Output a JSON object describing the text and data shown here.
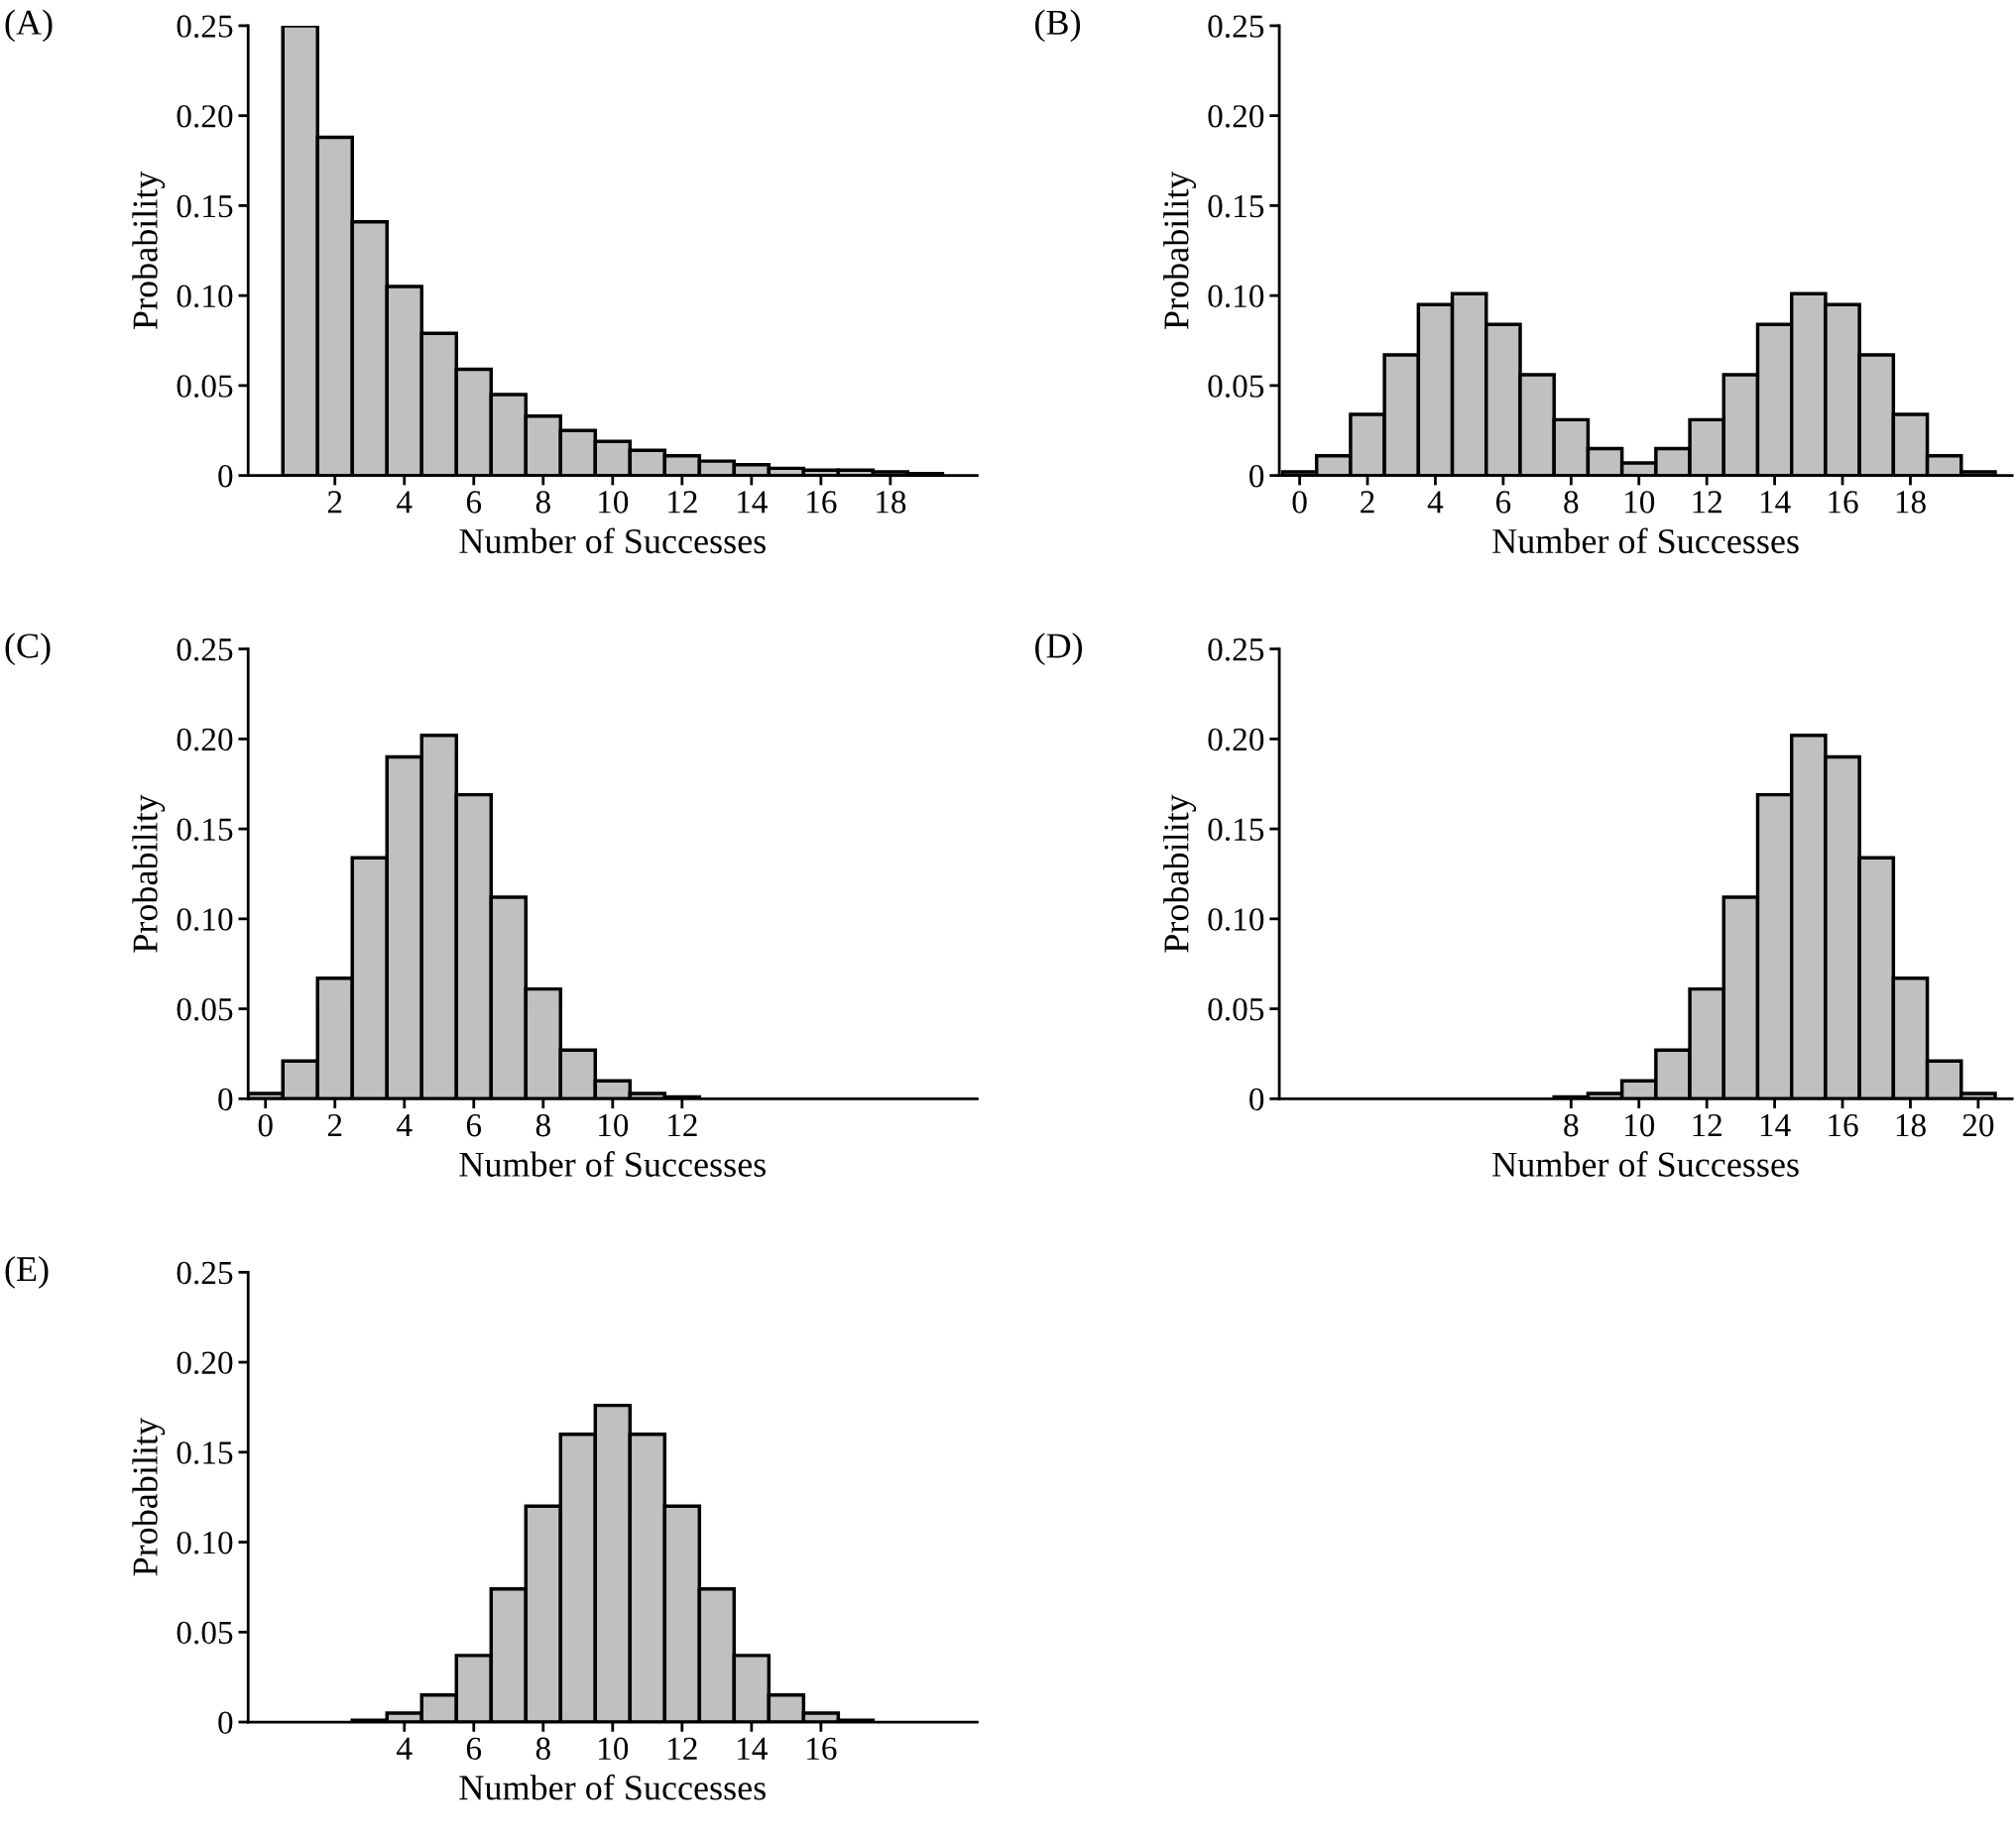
{
  "chart_data": [
    {
      "type": "bar",
      "title": "(A)",
      "xlabel": "Number of Successes",
      "ylabel": "Probability",
      "color": "#c0c0c0",
      "x": [
        1,
        2,
        3,
        4,
        5,
        6,
        7,
        8,
        9,
        10,
        11,
        12,
        13,
        14,
        15,
        16,
        17,
        18,
        19
      ],
      "values": [
        0.25,
        0.188,
        0.141,
        0.105,
        0.079,
        0.059,
        0.045,
        0.033,
        0.025,
        0.019,
        0.014,
        0.011,
        0.008,
        0.006,
        0.004,
        0.003,
        0.003,
        0.002,
        0.001
      ],
      "xlim": [
        -0.5,
        20.5
      ],
      "xticks": [
        2,
        4,
        6,
        8,
        10,
        12,
        14,
        16,
        18
      ],
      "ylim": [
        0,
        0.25
      ],
      "yticks": [
        0,
        {
          "value": 0.05,
          "label": "0.05"
        },
        {
          "value": 0.1,
          "label": "0.10"
        },
        {
          "value": 0.15,
          "label": "0.15"
        },
        {
          "value": 0.2,
          "label": "0.20"
        },
        {
          "value": 0.25,
          "label": "0.25"
        }
      ],
      "grid": false
    },
    {
      "type": "bar",
      "title": "(B)",
      "xlabel": "Number of Successes",
      "ylabel": "Probability",
      "color": "#c0c0c0",
      "x": [
        0,
        1,
        2,
        3,
        4,
        5,
        6,
        7,
        8,
        9,
        10,
        11,
        12,
        13,
        14,
        15,
        16,
        17,
        18,
        19,
        20
      ],
      "values": [
        0.002,
        0.011,
        0.034,
        0.067,
        0.095,
        0.101,
        0.084,
        0.056,
        0.031,
        0.015,
        0.007,
        0.015,
        0.031,
        0.056,
        0.084,
        0.101,
        0.095,
        0.067,
        0.034,
        0.011,
        0.002
      ],
      "xlim": [
        -0.6,
        21
      ],
      "xticks": [
        0,
        2,
        4,
        6,
        8,
        10,
        12,
        14,
        16,
        18
      ],
      "ylim": [
        0,
        0.25
      ],
      "yticks": [
        0,
        {
          "value": 0.05,
          "label": "0.05"
        },
        {
          "value": 0.1,
          "label": "0.10"
        },
        {
          "value": 0.15,
          "label": "0.15"
        },
        {
          "value": 0.2,
          "label": "0.20"
        },
        {
          "value": 0.25,
          "label": "0.25"
        }
      ],
      "grid": false
    },
    {
      "type": "bar",
      "title": "(C)",
      "xlabel": "Number of Successes",
      "ylabel": "Probability",
      "color": "#c0c0c0",
      "x": [
        0,
        1,
        2,
        3,
        4,
        5,
        6,
        7,
        8,
        9,
        10,
        11,
        12
      ],
      "values": [
        0.003,
        0.021,
        0.067,
        0.134,
        0.19,
        0.202,
        0.169,
        0.112,
        0.061,
        0.027,
        0.01,
        0.003,
        0.001
      ],
      "xlim": [
        -0.5,
        20.5
      ],
      "xticks": [
        0,
        2,
        4,
        6,
        8,
        10,
        12
      ],
      "ylim": [
        0,
        0.25
      ],
      "yticks": [
        0,
        {
          "value": 0.05,
          "label": "0.05"
        },
        {
          "value": 0.1,
          "label": "0.10"
        },
        {
          "value": 0.15,
          "label": "0.15"
        },
        {
          "value": 0.2,
          "label": "0.20"
        },
        {
          "value": 0.25,
          "label": "0.25"
        }
      ],
      "grid": false
    },
    {
      "type": "bar",
      "title": "(D)",
      "xlabel": "Number of Successes",
      "ylabel": "Probability",
      "color": "#c0c0c0",
      "x": [
        8,
        9,
        10,
        11,
        12,
        13,
        14,
        15,
        16,
        17,
        18,
        19,
        20
      ],
      "values": [
        0.001,
        0.003,
        0.01,
        0.027,
        0.061,
        0.112,
        0.169,
        0.202,
        0.19,
        0.134,
        0.067,
        0.021,
        0.003
      ],
      "xlim": [
        -0.6,
        21
      ],
      "xticks": [
        8,
        10,
        12,
        14,
        16,
        18,
        20
      ],
      "ylim": [
        0,
        0.25
      ],
      "yticks": [
        0,
        {
          "value": 0.05,
          "label": "0.05"
        },
        {
          "value": 0.1,
          "label": "0.10"
        },
        {
          "value": 0.15,
          "label": "0.15"
        },
        {
          "value": 0.2,
          "label": "0.20"
        },
        {
          "value": 0.25,
          "label": "0.25"
        }
      ],
      "grid": false
    },
    {
      "type": "bar",
      "title": "(E)",
      "xlabel": "Number of Successes",
      "ylabel": "Probability",
      "color": "#c0c0c0",
      "x": [
        3,
        4,
        5,
        6,
        7,
        8,
        9,
        10,
        11,
        12,
        13,
        14,
        15,
        16,
        17
      ],
      "values": [
        0.001,
        0.005,
        0.015,
        0.037,
        0.074,
        0.12,
        0.16,
        0.176,
        0.16,
        0.12,
        0.074,
        0.037,
        0.015,
        0.005,
        0.001
      ],
      "xlim": [
        -0.5,
        20.5
      ],
      "xticks": [
        4,
        6,
        8,
        10,
        12,
        14,
        16
      ],
      "ylim": [
        0,
        0.25
      ],
      "yticks": [
        0,
        {
          "value": 0.05,
          "label": "0.05"
        },
        {
          "value": 0.1,
          "label": "0.10"
        },
        {
          "value": 0.15,
          "label": "0.15"
        },
        {
          "value": 0.2,
          "label": "0.20"
        },
        {
          "value": 0.25,
          "label": "0.25"
        }
      ],
      "grid": false
    }
  ]
}
